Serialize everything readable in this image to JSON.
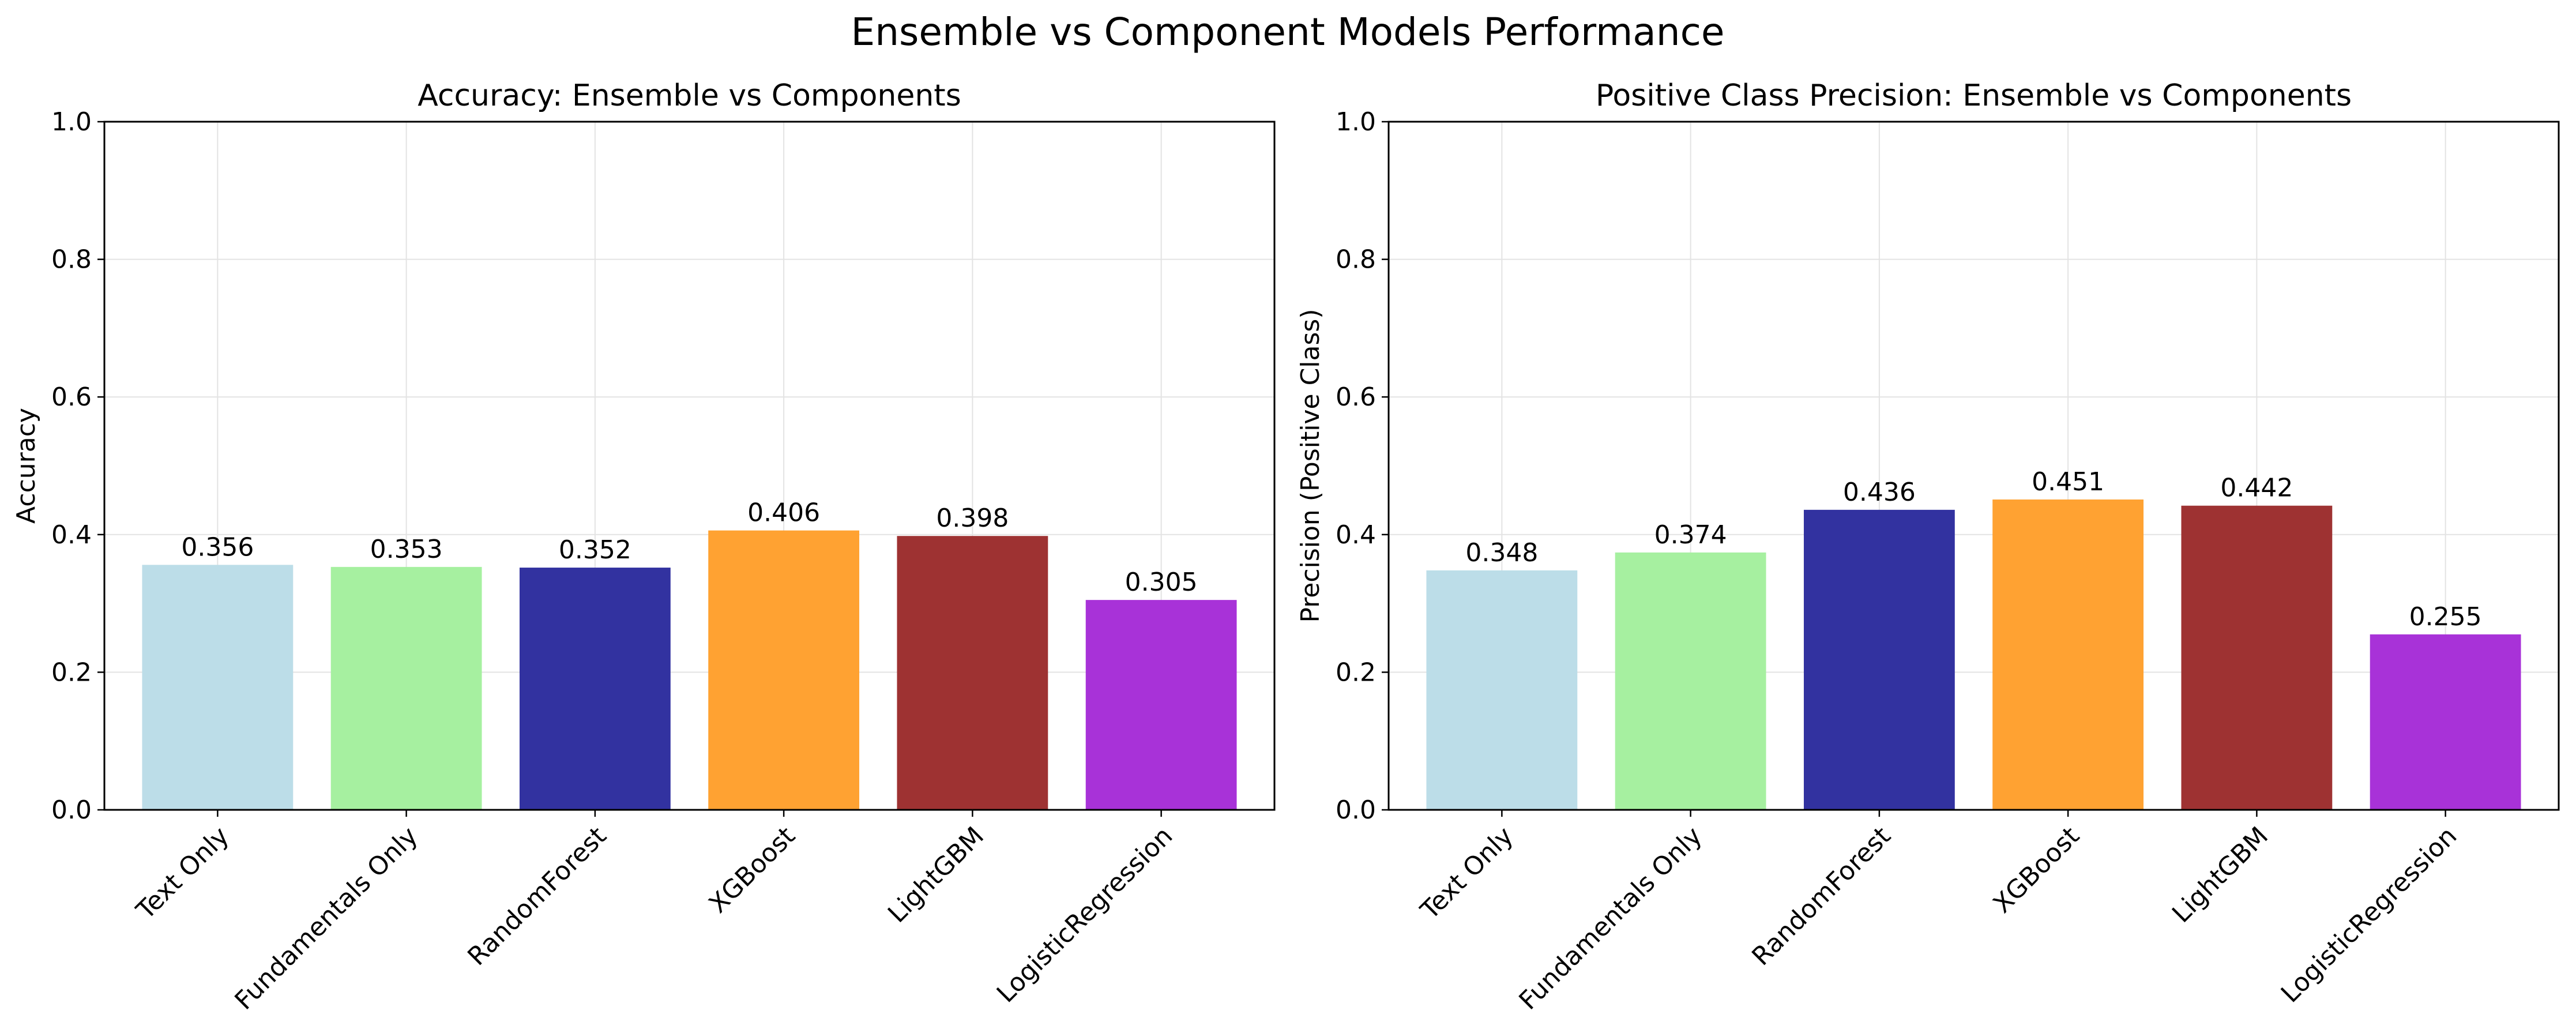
{
  "figure": {
    "suptitle": "Ensemble vs Component Models Performance"
  },
  "chart_data": [
    {
      "type": "bar",
      "title": "Accuracy: Ensemble vs Components",
      "xlabel": "",
      "ylabel": "Accuracy",
      "ylim": [
        0,
        1.0
      ],
      "yticks": [
        "0.0",
        "0.2",
        "0.4",
        "0.6",
        "0.8",
        "1.0"
      ],
      "grid": true,
      "categories": [
        "Text Only",
        "Fundamentals Only",
        "RandomForest",
        "XGBoost",
        "LightGBM",
        "LogisticRegression"
      ],
      "values": [
        0.356,
        0.353,
        0.352,
        0.406,
        0.398,
        0.305
      ],
      "value_labels": [
        "0.356",
        "0.353",
        "0.352",
        "0.406",
        "0.398",
        "0.305"
      ],
      "colors": [
        "#bcdde8",
        "#a6f0a0",
        "#3232a0",
        "#ffa232",
        "#9e3232",
        "#a832d8"
      ]
    },
    {
      "type": "bar",
      "title": "Positive Class Precision: Ensemble vs Components",
      "xlabel": "",
      "ylabel": "Precision (Positive Class)",
      "ylim": [
        0,
        1.0
      ],
      "yticks": [
        "0.0",
        "0.2",
        "0.4",
        "0.6",
        "0.8",
        "1.0"
      ],
      "grid": true,
      "categories": [
        "Text Only",
        "Fundamentals Only",
        "RandomForest",
        "XGBoost",
        "LightGBM",
        "LogisticRegression"
      ],
      "values": [
        0.348,
        0.374,
        0.436,
        0.451,
        0.442,
        0.255
      ],
      "value_labels": [
        "0.348",
        "0.374",
        "0.436",
        "0.451",
        "0.442",
        "0.255"
      ],
      "colors": [
        "#bcdde8",
        "#a6f0a0",
        "#3232a0",
        "#ffa232",
        "#9e3232",
        "#a832d8"
      ]
    }
  ]
}
